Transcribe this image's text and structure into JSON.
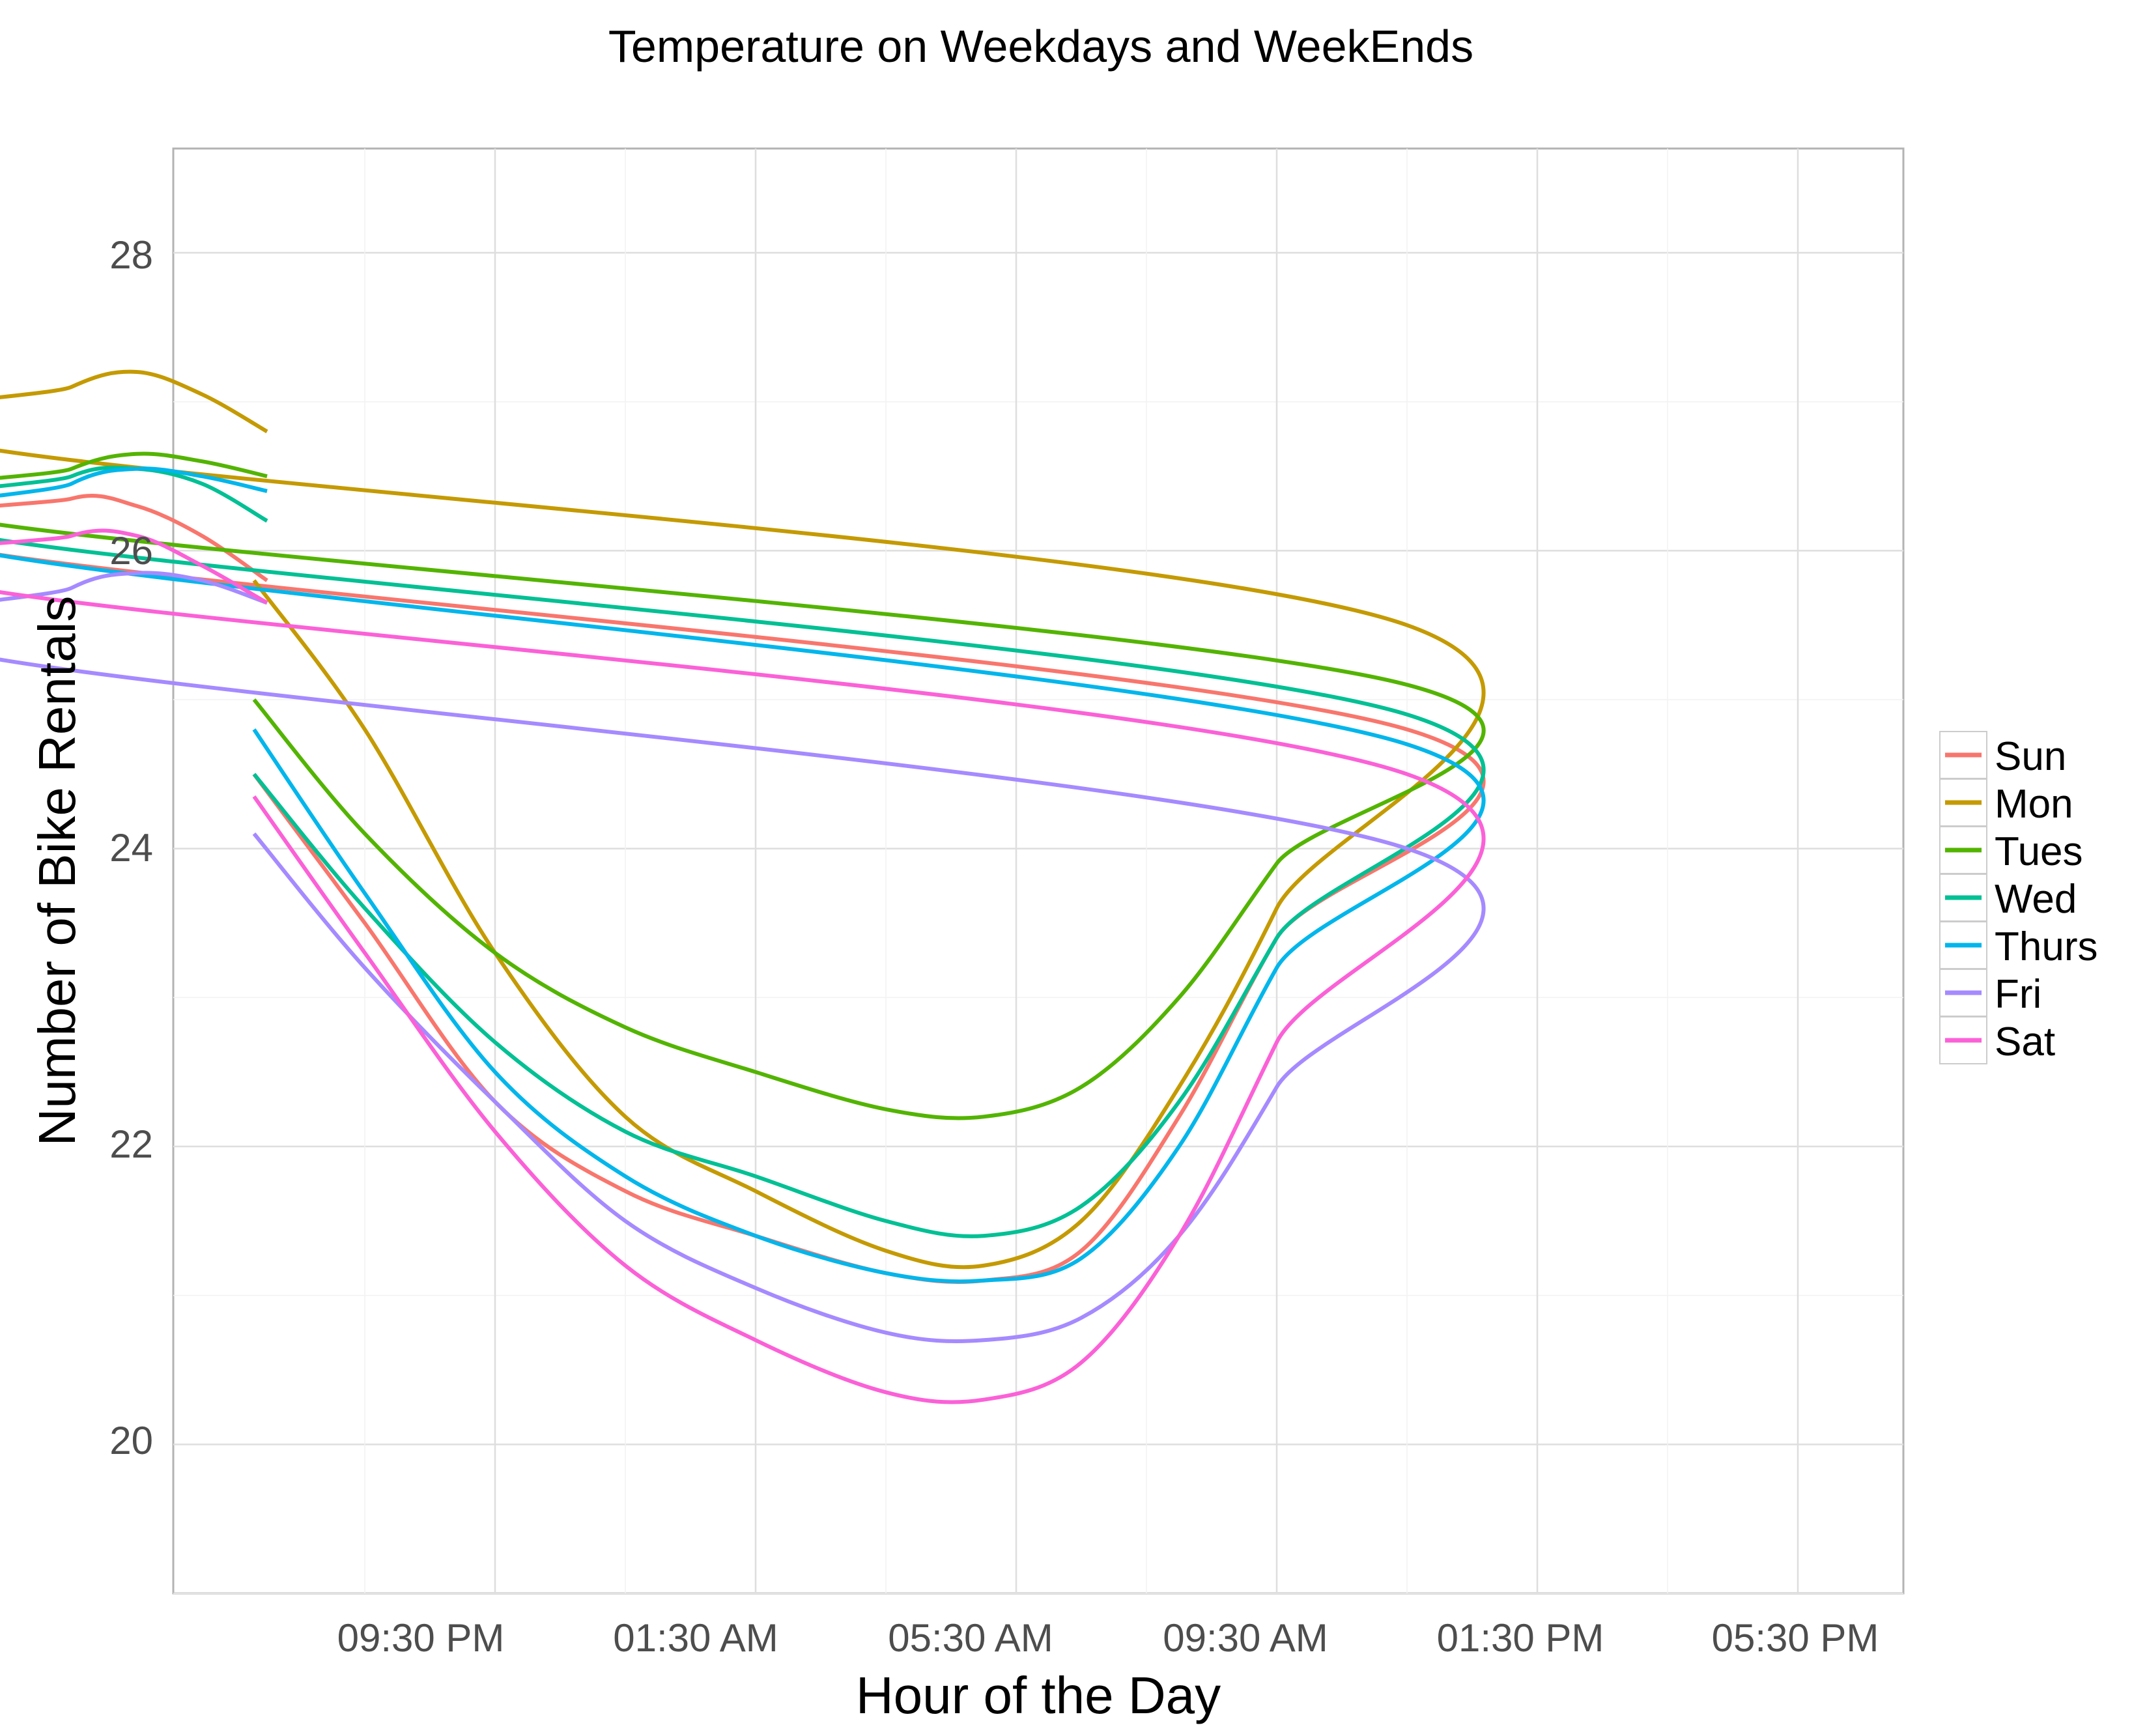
{
  "chart_data": {
    "type": "line",
    "title": "Temperature on Weekdays and WeekEnds",
    "xlabel": "Hour of the Day",
    "ylabel": "Number of Bike Rentals",
    "x_tick_labels": [
      "09:30 PM",
      "01:30 AM",
      "05:30 AM",
      "09:30 AM",
      "01:30 PM",
      "05:30 PM"
    ],
    "y_tick_labels": [
      "20",
      "22",
      "24",
      "26",
      "28"
    ],
    "ylim": [
      19,
      28.7
    ],
    "grid": true,
    "legend_position": "right",
    "series": [
      {
        "name": "Sun",
        "color": "#F8766D",
        "points": [
          [
            17.8,
            24.5
          ],
          [
            19.5,
            23.5
          ],
          [
            21.5,
            22.3
          ],
          [
            23.5,
            21.7
          ],
          [
            1.5,
            21.4
          ],
          [
            3.5,
            21.15
          ],
          [
            5.0,
            21.1
          ],
          [
            6.5,
            21.3
          ],
          [
            8.0,
            22.2
          ],
          [
            9.5,
            23.4
          ],
          [
            11.5,
            24.8
          ],
          [
            13.5,
            26.0
          ],
          [
            15.0,
            26.35
          ],
          [
            16.0,
            26.3
          ],
          [
            17.0,
            26.1
          ],
          [
            18.0,
            25.8
          ]
        ]
      },
      {
        "name": "Mon",
        "color": "#C49A00",
        "points": [
          [
            17.8,
            25.8
          ],
          [
            19.5,
            24.8
          ],
          [
            21.5,
            23.3
          ],
          [
            23.5,
            22.2
          ],
          [
            1.5,
            21.7
          ],
          [
            3.5,
            21.3
          ],
          [
            5.0,
            21.2
          ],
          [
            6.5,
            21.5
          ],
          [
            8.0,
            22.4
          ],
          [
            9.5,
            23.6
          ],
          [
            11.5,
            25.5
          ],
          [
            13.5,
            26.7
          ],
          [
            15.0,
            27.1
          ],
          [
            16.0,
            27.2
          ],
          [
            17.0,
            27.05
          ],
          [
            18.0,
            26.8
          ]
        ]
      },
      {
        "name": "Tues",
        "color": "#53B400",
        "points": [
          [
            17.8,
            25.0
          ],
          [
            19.5,
            24.1
          ],
          [
            21.5,
            23.3
          ],
          [
            23.5,
            22.8
          ],
          [
            1.5,
            22.5
          ],
          [
            3.5,
            22.25
          ],
          [
            5.0,
            22.2
          ],
          [
            6.5,
            22.4
          ],
          [
            8.0,
            23.0
          ],
          [
            9.5,
            23.9
          ],
          [
            11.5,
            25.1
          ],
          [
            13.5,
            26.2
          ],
          [
            15.0,
            26.55
          ],
          [
            16.0,
            26.65
          ],
          [
            17.0,
            26.6
          ],
          [
            18.0,
            26.5
          ]
        ]
      },
      {
        "name": "Wed",
        "color": "#00C094",
        "points": [
          [
            17.8,
            24.5
          ],
          [
            19.5,
            23.6
          ],
          [
            21.5,
            22.7
          ],
          [
            23.5,
            22.1
          ],
          [
            1.5,
            21.8
          ],
          [
            3.5,
            21.5
          ],
          [
            5.0,
            21.4
          ],
          [
            6.5,
            21.6
          ],
          [
            8.0,
            22.3
          ],
          [
            9.5,
            23.4
          ],
          [
            11.5,
            24.9
          ],
          [
            13.5,
            26.1
          ],
          [
            15.0,
            26.5
          ],
          [
            16.0,
            26.55
          ],
          [
            17.0,
            26.45
          ],
          [
            18.0,
            26.2
          ]
        ]
      },
      {
        "name": "Thurs",
        "color": "#00B6EB",
        "points": [
          [
            17.8,
            24.8
          ],
          [
            19.5,
            23.7
          ],
          [
            21.5,
            22.5
          ],
          [
            23.5,
            21.8
          ],
          [
            1.5,
            21.4
          ],
          [
            3.5,
            21.15
          ],
          [
            5.0,
            21.1
          ],
          [
            6.5,
            21.25
          ],
          [
            8.0,
            22.0
          ],
          [
            9.5,
            23.2
          ],
          [
            11.5,
            24.7
          ],
          [
            13.5,
            26.0
          ],
          [
            15.0,
            26.45
          ],
          [
            16.0,
            26.55
          ],
          [
            17.0,
            26.5
          ],
          [
            18.0,
            26.4
          ]
        ]
      },
      {
        "name": "Fri",
        "color": "#A58AFF",
        "points": [
          [
            17.8,
            24.1
          ],
          [
            19.5,
            23.2
          ],
          [
            21.5,
            22.3
          ],
          [
            23.5,
            21.5
          ],
          [
            1.5,
            21.05
          ],
          [
            3.5,
            20.75
          ],
          [
            5.0,
            20.7
          ],
          [
            6.5,
            20.85
          ],
          [
            8.0,
            21.4
          ],
          [
            9.5,
            22.4
          ],
          [
            11.5,
            24.0
          ],
          [
            13.5,
            25.3
          ],
          [
            15.0,
            25.75
          ],
          [
            16.0,
            25.85
          ],
          [
            17.0,
            25.8
          ],
          [
            18.0,
            25.65
          ]
        ]
      },
      {
        "name": "Sat",
        "color": "#FB61D7",
        "points": [
          [
            17.8,
            24.35
          ],
          [
            19.5,
            23.3
          ],
          [
            21.5,
            22.1
          ],
          [
            23.5,
            21.2
          ],
          [
            1.5,
            20.7
          ],
          [
            3.5,
            20.35
          ],
          [
            5.0,
            20.3
          ],
          [
            6.5,
            20.55
          ],
          [
            8.0,
            21.4
          ],
          [
            9.5,
            22.7
          ],
          [
            11.5,
            24.5
          ],
          [
            13.5,
            25.75
          ],
          [
            15.0,
            26.1
          ],
          [
            16.0,
            26.1
          ],
          [
            17.0,
            25.9
          ],
          [
            18.0,
            25.65
          ]
        ]
      }
    ]
  }
}
